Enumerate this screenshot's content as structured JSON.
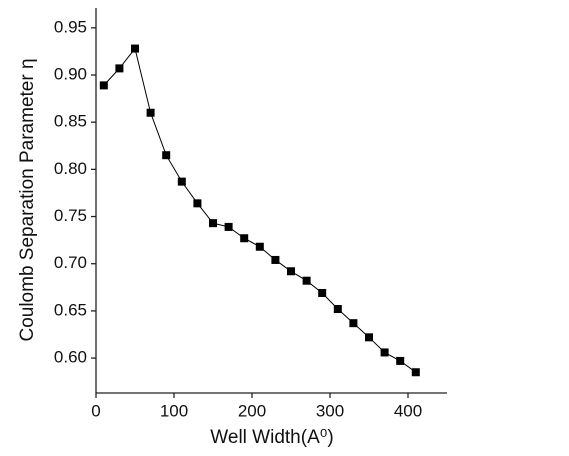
{
  "chart_data": {
    "type": "line",
    "x_label": "Well Width(A⁰)",
    "y_label": "Coulomb Separation Parameter η",
    "x": [
      10,
      30,
      50,
      70,
      90,
      110,
      130,
      150,
      170,
      190,
      210,
      230,
      250,
      270,
      290,
      310,
      330,
      350,
      370,
      390,
      410
    ],
    "series": [
      {
        "color": "#000000",
        "values": [
          0.889,
          0.907,
          0.928,
          0.86,
          0.815,
          0.787,
          0.764,
          0.743,
          0.739,
          0.727,
          0.718,
          0.704,
          0.692,
          0.682,
          0.669,
          0.652,
          0.637,
          0.622,
          0.606,
          0.597,
          0.585
        ]
      }
    ],
    "xlim": [
      0,
      450
    ],
    "xticks": [
      0,
      100,
      200,
      300,
      400
    ],
    "ylim": [
      0.563,
      0.971
    ],
    "yticks": [
      {
        "value": 0.6,
        "label": "0.60"
      },
      0.65,
      {
        "value": 0.7,
        "label": "0.70"
      },
      0.75,
      {
        "value": 0.8,
        "label": "0.80"
      },
      0.85,
      {
        "value": 0.9,
        "label": "0.90"
      },
      0.95
    ],
    "grid": false,
    "marker": "square"
  }
}
